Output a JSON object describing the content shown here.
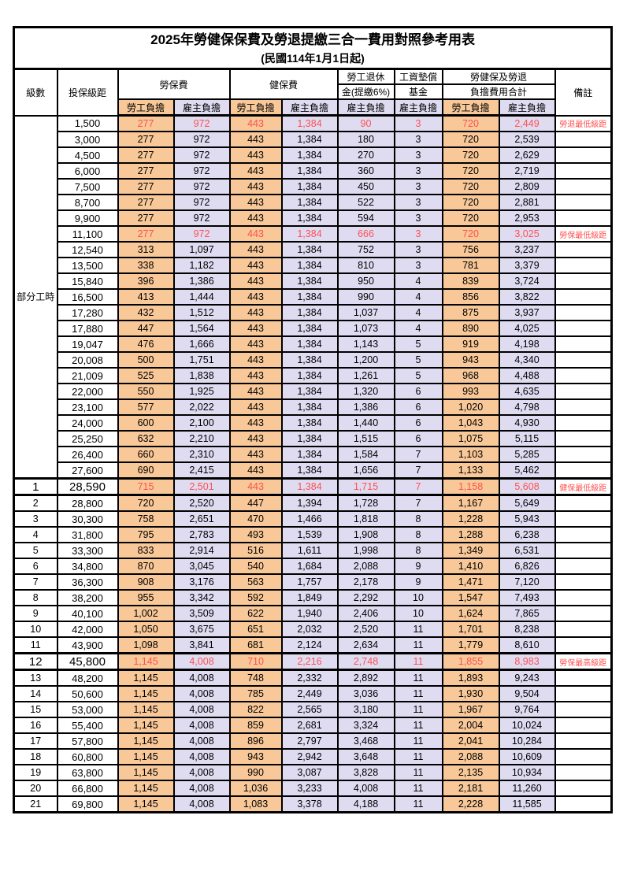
{
  "title": {
    "line1": "2025年勞健保保費及勞退提繳三合一費用對照參考用表",
    "line2": "(民國114年1月1日起)"
  },
  "columns": {
    "level": "級數",
    "bracket": "投保級距",
    "labor_insurance": "勞保費",
    "health_insurance": "健保費",
    "pension_line1": "勞工退休",
    "pension_line2": "金(提繳6%)",
    "wage_fund_line1": "工資墊償",
    "wage_fund_line2": "基金",
    "total_line1": "勞健保及勞退",
    "total_line2": "負擔費用合計",
    "remarks": "備註",
    "employee_share": "勞工負擔",
    "employer_share": "雇主負擔"
  },
  "part_time_label": "部分工時",
  "part_time_rowspan": 23,
  "colors": {
    "employee_bg": "#F8C898",
    "employer_bg": "#DFDCF2",
    "highlight_text": "#FF5050",
    "note_text": "#FF4040",
    "border": "#000000"
  },
  "rows": [
    {
      "level": "",
      "bracket": "1,500",
      "values": [
        "277",
        "972",
        "443",
        "1,384",
        "90",
        "3",
        "720",
        "2,449"
      ],
      "note": "勞退最低級距",
      "highlight": true,
      "emphasis": false
    },
    {
      "level": "",
      "bracket": "3,000",
      "values": [
        "277",
        "972",
        "443",
        "1,384",
        "180",
        "3",
        "720",
        "2,539"
      ],
      "note": "",
      "highlight": false,
      "emphasis": false
    },
    {
      "level": "",
      "bracket": "4,500",
      "values": [
        "277",
        "972",
        "443",
        "1,384",
        "270",
        "3",
        "720",
        "2,629"
      ],
      "note": "",
      "highlight": false,
      "emphasis": false
    },
    {
      "level": "",
      "bracket": "6,000",
      "values": [
        "277",
        "972",
        "443",
        "1,384",
        "360",
        "3",
        "720",
        "2,719"
      ],
      "note": "",
      "highlight": false,
      "emphasis": false
    },
    {
      "level": "",
      "bracket": "7,500",
      "values": [
        "277",
        "972",
        "443",
        "1,384",
        "450",
        "3",
        "720",
        "2,809"
      ],
      "note": "",
      "highlight": false,
      "emphasis": false
    },
    {
      "level": "",
      "bracket": "8,700",
      "values": [
        "277",
        "972",
        "443",
        "1,384",
        "522",
        "3",
        "720",
        "2,881"
      ],
      "note": "",
      "highlight": false,
      "emphasis": false
    },
    {
      "level": "",
      "bracket": "9,900",
      "values": [
        "277",
        "972",
        "443",
        "1,384",
        "594",
        "3",
        "720",
        "2,953"
      ],
      "note": "",
      "highlight": false,
      "emphasis": false
    },
    {
      "level": "",
      "bracket": "11,100",
      "values": [
        "277",
        "972",
        "443",
        "1,384",
        "666",
        "3",
        "720",
        "3,025"
      ],
      "note": "勞保最低級距",
      "highlight": true,
      "emphasis": false
    },
    {
      "level": "",
      "bracket": "12,540",
      "values": [
        "313",
        "1,097",
        "443",
        "1,384",
        "752",
        "3",
        "756",
        "3,237"
      ],
      "note": "",
      "highlight": false,
      "emphasis": false
    },
    {
      "level": "",
      "bracket": "13,500",
      "values": [
        "338",
        "1,182",
        "443",
        "1,384",
        "810",
        "3",
        "781",
        "3,379"
      ],
      "note": "",
      "highlight": false,
      "emphasis": false
    },
    {
      "level": "",
      "bracket": "15,840",
      "values": [
        "396",
        "1,386",
        "443",
        "1,384",
        "950",
        "4",
        "839",
        "3,724"
      ],
      "note": "",
      "highlight": false,
      "emphasis": false
    },
    {
      "level": "",
      "bracket": "16,500",
      "values": [
        "413",
        "1,444",
        "443",
        "1,384",
        "990",
        "4",
        "856",
        "3,822"
      ],
      "note": "",
      "highlight": false,
      "emphasis": false
    },
    {
      "level": "",
      "bracket": "17,280",
      "values": [
        "432",
        "1,512",
        "443",
        "1,384",
        "1,037",
        "4",
        "875",
        "3,937"
      ],
      "note": "",
      "highlight": false,
      "emphasis": false
    },
    {
      "level": "",
      "bracket": "17,880",
      "values": [
        "447",
        "1,564",
        "443",
        "1,384",
        "1,073",
        "4",
        "890",
        "4,025"
      ],
      "note": "",
      "highlight": false,
      "emphasis": false
    },
    {
      "level": "",
      "bracket": "19,047",
      "values": [
        "476",
        "1,666",
        "443",
        "1,384",
        "1,143",
        "5",
        "919",
        "4,198"
      ],
      "note": "",
      "highlight": false,
      "emphasis": false
    },
    {
      "level": "",
      "bracket": "20,008",
      "values": [
        "500",
        "1,751",
        "443",
        "1,384",
        "1,200",
        "5",
        "943",
        "4,340"
      ],
      "note": "",
      "highlight": false,
      "emphasis": false
    },
    {
      "level": "",
      "bracket": "21,009",
      "values": [
        "525",
        "1,838",
        "443",
        "1,384",
        "1,261",
        "5",
        "968",
        "4,488"
      ],
      "note": "",
      "highlight": false,
      "emphasis": false
    },
    {
      "level": "",
      "bracket": "22,000",
      "values": [
        "550",
        "1,925",
        "443",
        "1,384",
        "1,320",
        "6",
        "993",
        "4,635"
      ],
      "note": "",
      "highlight": false,
      "emphasis": false
    },
    {
      "level": "",
      "bracket": "23,100",
      "values": [
        "577",
        "2,022",
        "443",
        "1,384",
        "1,386",
        "6",
        "1,020",
        "4,798"
      ],
      "note": "",
      "highlight": false,
      "emphasis": false
    },
    {
      "level": "",
      "bracket": "24,000",
      "values": [
        "600",
        "2,100",
        "443",
        "1,384",
        "1,440",
        "6",
        "1,043",
        "4,930"
      ],
      "note": "",
      "highlight": false,
      "emphasis": false
    },
    {
      "level": "",
      "bracket": "25,250",
      "values": [
        "632",
        "2,210",
        "443",
        "1,384",
        "1,515",
        "6",
        "1,075",
        "5,115"
      ],
      "note": "",
      "highlight": false,
      "emphasis": false
    },
    {
      "level": "",
      "bracket": "26,400",
      "values": [
        "660",
        "2,310",
        "443",
        "1,384",
        "1,584",
        "7",
        "1,103",
        "5,285"
      ],
      "note": "",
      "highlight": false,
      "emphasis": false
    },
    {
      "level": "",
      "bracket": "27,600",
      "values": [
        "690",
        "2,415",
        "443",
        "1,384",
        "1,656",
        "7",
        "1,133",
        "5,462"
      ],
      "note": "",
      "highlight": false,
      "emphasis": false
    },
    {
      "level": "1",
      "bracket": "28,590",
      "values": [
        "715",
        "2,501",
        "443",
        "1,384",
        "1,715",
        "7",
        "1,158",
        "5,608"
      ],
      "note": "健保最低級距",
      "highlight": true,
      "emphasis": true
    },
    {
      "level": "2",
      "bracket": "28,800",
      "values": [
        "720",
        "2,520",
        "447",
        "1,394",
        "1,728",
        "7",
        "1,167",
        "5,649"
      ],
      "note": "",
      "highlight": false,
      "emphasis": false
    },
    {
      "level": "3",
      "bracket": "30,300",
      "values": [
        "758",
        "2,651",
        "470",
        "1,466",
        "1,818",
        "8",
        "1,228",
        "5,943"
      ],
      "note": "",
      "highlight": false,
      "emphasis": false
    },
    {
      "level": "4",
      "bracket": "31,800",
      "values": [
        "795",
        "2,783",
        "493",
        "1,539",
        "1,908",
        "8",
        "1,288",
        "6,238"
      ],
      "note": "",
      "highlight": false,
      "emphasis": false
    },
    {
      "level": "5",
      "bracket": "33,300",
      "values": [
        "833",
        "2,914",
        "516",
        "1,611",
        "1,998",
        "8",
        "1,349",
        "6,531"
      ],
      "note": "",
      "highlight": false,
      "emphasis": false
    },
    {
      "level": "6",
      "bracket": "34,800",
      "values": [
        "870",
        "3,045",
        "540",
        "1,684",
        "2,088",
        "9",
        "1,410",
        "6,826"
      ],
      "note": "",
      "highlight": false,
      "emphasis": false
    },
    {
      "level": "7",
      "bracket": "36,300",
      "values": [
        "908",
        "3,176",
        "563",
        "1,757",
        "2,178",
        "9",
        "1,471",
        "7,120"
      ],
      "note": "",
      "highlight": false,
      "emphasis": false
    },
    {
      "level": "8",
      "bracket": "38,200",
      "values": [
        "955",
        "3,342",
        "592",
        "1,849",
        "2,292",
        "10",
        "1,547",
        "7,493"
      ],
      "note": "",
      "highlight": false,
      "emphasis": false
    },
    {
      "level": "9",
      "bracket": "40,100",
      "values": [
        "1,002",
        "3,509",
        "622",
        "1,940",
        "2,406",
        "10",
        "1,624",
        "7,865"
      ],
      "note": "",
      "highlight": false,
      "emphasis": false
    },
    {
      "level": "10",
      "bracket": "42,000",
      "values": [
        "1,050",
        "3,675",
        "651",
        "2,032",
        "2,520",
        "11",
        "1,701",
        "8,238"
      ],
      "note": "",
      "highlight": false,
      "emphasis": false
    },
    {
      "level": "11",
      "bracket": "43,900",
      "values": [
        "1,098",
        "3,841",
        "681",
        "2,124",
        "2,634",
        "11",
        "1,779",
        "8,610"
      ],
      "note": "",
      "highlight": false,
      "emphasis": false
    },
    {
      "level": "12",
      "bracket": "45,800",
      "values": [
        "1,145",
        "4,008",
        "710",
        "2,216",
        "2,748",
        "11",
        "1,855",
        "8,983"
      ],
      "note": "勞保最高級距",
      "highlight": true,
      "emphasis": true
    },
    {
      "level": "13",
      "bracket": "48,200",
      "values": [
        "1,145",
        "4,008",
        "748",
        "2,332",
        "2,892",
        "11",
        "1,893",
        "9,243"
      ],
      "note": "",
      "highlight": false,
      "emphasis": false
    },
    {
      "level": "14",
      "bracket": "50,600",
      "values": [
        "1,145",
        "4,008",
        "785",
        "2,449",
        "3,036",
        "11",
        "1,930",
        "9,504"
      ],
      "note": "",
      "highlight": false,
      "emphasis": false
    },
    {
      "level": "15",
      "bracket": "53,000",
      "values": [
        "1,145",
        "4,008",
        "822",
        "2,565",
        "3,180",
        "11",
        "1,967",
        "9,764"
      ],
      "note": "",
      "highlight": false,
      "emphasis": false
    },
    {
      "level": "16",
      "bracket": "55,400",
      "values": [
        "1,145",
        "4,008",
        "859",
        "2,681",
        "3,324",
        "11",
        "2,004",
        "10,024"
      ],
      "note": "",
      "highlight": false,
      "emphasis": false
    },
    {
      "level": "17",
      "bracket": "57,800",
      "values": [
        "1,145",
        "4,008",
        "896",
        "2,797",
        "3,468",
        "11",
        "2,041",
        "10,284"
      ],
      "note": "",
      "highlight": false,
      "emphasis": false
    },
    {
      "level": "18",
      "bracket": "60,800",
      "values": [
        "1,145",
        "4,008",
        "943",
        "2,942",
        "3,648",
        "11",
        "2,088",
        "10,609"
      ],
      "note": "",
      "highlight": false,
      "emphasis": false
    },
    {
      "level": "19",
      "bracket": "63,800",
      "values": [
        "1,145",
        "4,008",
        "990",
        "3,087",
        "3,828",
        "11",
        "2,135",
        "10,934"
      ],
      "note": "",
      "highlight": false,
      "emphasis": false
    },
    {
      "level": "20",
      "bracket": "66,800",
      "values": [
        "1,145",
        "4,008",
        "1,036",
        "3,233",
        "4,008",
        "11",
        "2,181",
        "11,260"
      ],
      "note": "",
      "highlight": false,
      "emphasis": false
    },
    {
      "level": "21",
      "bracket": "69,800",
      "values": [
        "1,145",
        "4,008",
        "1,083",
        "3,378",
        "4,188",
        "11",
        "2,228",
        "11,585"
      ],
      "note": "",
      "highlight": false,
      "emphasis": false
    }
  ]
}
